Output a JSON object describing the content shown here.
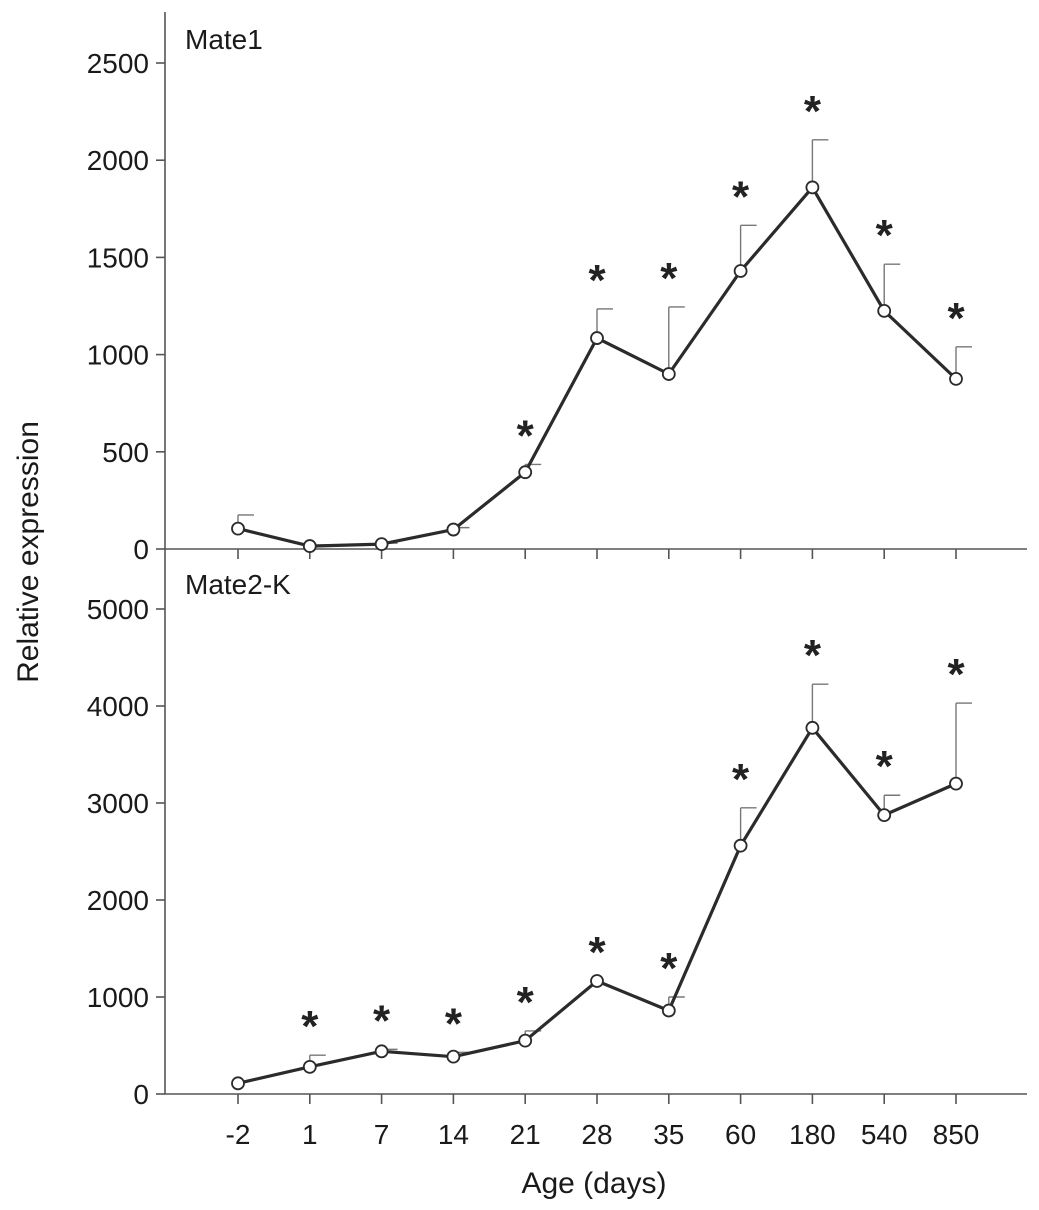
{
  "chart_data": {
    "type": "line",
    "xlabel": "Age (days)",
    "ylabel": "Relative expression",
    "categories": [
      "-2",
      "1",
      "7",
      "14",
      "21",
      "28",
      "35",
      "60",
      "180",
      "540",
      "850"
    ],
    "panels": [
      {
        "label": "Mate1",
        "ylim": [
          0,
          2500
        ],
        "yticks": [
          "0",
          "500",
          "1000",
          "1500",
          "2000",
          "2500"
        ],
        "values": [
          105,
          15,
          25,
          100,
          395,
          1085,
          900,
          1430,
          1860,
          1225,
          875
        ],
        "error_upper": [
          175,
          20,
          30,
          110,
          435,
          1235,
          1245,
          1665,
          2105,
          1465,
          1040
        ],
        "significance": [
          "",
          "",
          "",
          "",
          "*",
          "*",
          "*",
          "*",
          "*",
          "*",
          "*"
        ]
      },
      {
        "label": "Mate2-K",
        "ylim": [
          0,
          5000
        ],
        "yticks": [
          "0",
          "1000",
          "2000",
          "3000",
          "4000",
          "5000"
        ],
        "values": [
          110,
          280,
          440,
          385,
          550,
          1165,
          860,
          2560,
          3775,
          2875,
          3200
        ],
        "error_upper": [
          110,
          400,
          460,
          430,
          650,
          1165,
          1000,
          2950,
          4225,
          3080,
          4030
        ],
        "significance": [
          "",
          "*",
          "*",
          "*",
          "*",
          "*",
          "*",
          "*",
          "*",
          "*",
          "*"
        ]
      }
    ]
  }
}
